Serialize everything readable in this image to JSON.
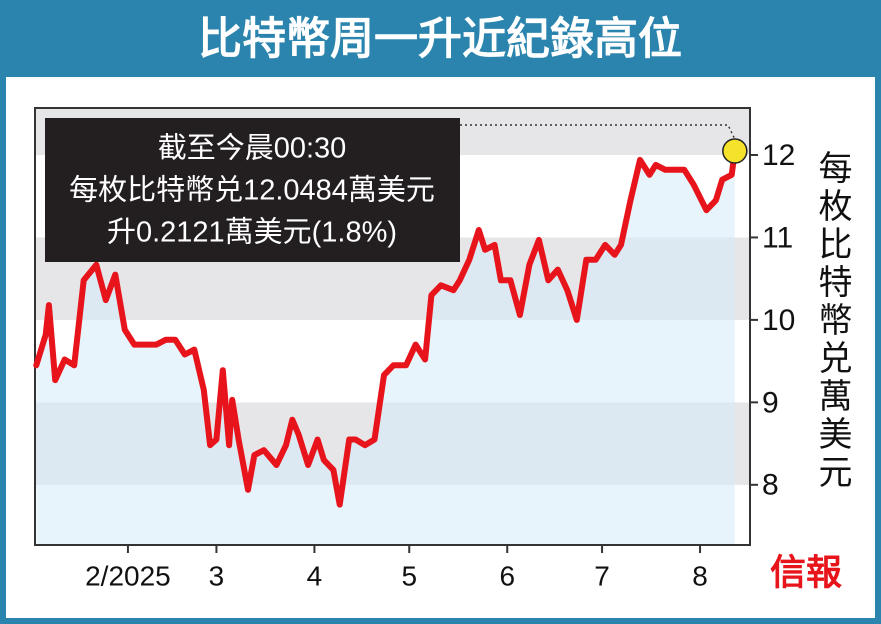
{
  "chart_data": {
    "type": "line",
    "title": "比特幣周一升近紀錄高位",
    "y_axis_label": "每枚比特幣兑萬美元",
    "annotations": [
      "截至今晨00:30",
      "每枚比特幣兑12.0484萬美元",
      "升0.2121萬美元(1.8%)"
    ],
    "logo": "信報",
    "x": [
      3,
      6,
      7,
      9,
      12,
      15,
      18,
      22,
      25,
      28,
      31,
      34,
      37,
      41,
      44,
      47,
      50,
      53,
      56,
      58,
      60,
      62,
      64,
      65,
      67,
      70,
      72,
      75,
      79,
      82,
      84,
      86,
      89,
      92,
      94,
      97,
      99,
      102,
      104,
      107,
      110,
      113,
      116,
      120,
      123,
      126,
      128,
      131,
      135,
      137,
      140,
      143,
      145,
      148,
      150,
      153,
      156,
      159,
      162,
      165,
      168,
      171,
      174,
      177,
      180,
      183,
      186,
      188,
      191,
      194,
      197,
      199,
      202,
      205,
      208,
      211,
      215,
      218,
      220,
      223,
      224
    ],
    "series": [
      {
        "name": "比特幣",
        "color": "#e8141c",
        "values": [
          9.45,
          9.82,
          10.18,
          9.27,
          9.52,
          9.45,
          10.48,
          10.67,
          10.24,
          10.55,
          9.88,
          9.7,
          9.7,
          9.7,
          9.76,
          9.76,
          9.58,
          9.64,
          9.15,
          8.48,
          8.55,
          9.39,
          8.48,
          9.03,
          8.55,
          7.94,
          8.36,
          8.42,
          8.24,
          8.48,
          8.79,
          8.61,
          8.24,
          8.55,
          8.3,
          8.18,
          7.76,
          8.55,
          8.55,
          8.48,
          8.55,
          9.33,
          9.45,
          9.45,
          9.7,
          9.52,
          10.3,
          10.42,
          10.36,
          10.48,
          10.73,
          11.09,
          10.85,
          10.91,
          10.48,
          10.48,
          10.06,
          10.67,
          10.97,
          10.48,
          10.61,
          10.36,
          10.0,
          10.73,
          10.73,
          10.91,
          10.79,
          10.91,
          11.45,
          11.94,
          11.76,
          11.88,
          11.82,
          11.82,
          11.82,
          11.64,
          11.33,
          11.45,
          11.7,
          11.76,
          12.0484
        ]
      }
    ],
    "area_color": "#d6ebf9",
    "marker_color": "#f5e22a",
    "xlim": [
      2.6,
      228.8
    ],
    "xticks": [
      {
        "value": 32,
        "label": "2/2025"
      },
      {
        "value": 60,
        "label": "3"
      },
      {
        "value": 91,
        "label": "4"
      },
      {
        "value": 121,
        "label": "5"
      },
      {
        "value": 152,
        "label": "6"
      },
      {
        "value": 182,
        "label": "7"
      },
      {
        "value": 213,
        "label": "8"
      }
    ],
    "ylim": [
      7.27,
      12.57
    ],
    "yticks": [
      8,
      9,
      10,
      11,
      12
    ],
    "y_axis_side": "right",
    "banded_grid": true
  }
}
